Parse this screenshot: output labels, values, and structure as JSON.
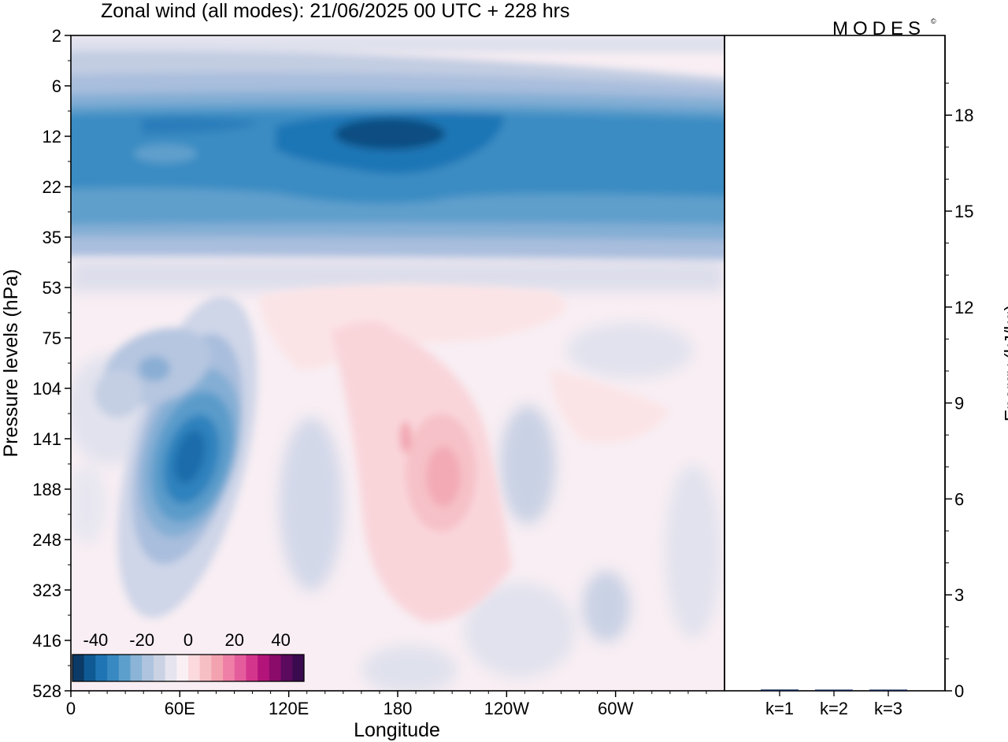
{
  "chart_data": [
    {
      "type": "heatmap",
      "title": "Zonal wind (all modes):  21/06/2025  00 UTC  + 228 hrs",
      "xlabel": "Longitude",
      "ylabel": "Pressure levels (hPa)",
      "x_ticks": [
        "0",
        "60E",
        "120E",
        "180",
        "120W",
        "60W"
      ],
      "x_tick_degrees": [
        0,
        60,
        120,
        180,
        240,
        300
      ],
      "xlim": [
        0,
        360
      ],
      "y_ticks": [
        "2",
        "6",
        "12",
        "22",
        "35",
        "53",
        "75",
        "104",
        "141",
        "188",
        "248",
        "323",
        "416",
        "528"
      ],
      "y_scale": "level index (top = 2 hPa, bottom = 528 hPa)",
      "colorbar": {
        "labels": [
          "-40",
          "-20",
          "0",
          "20",
          "40"
        ],
        "label_values": [
          -40,
          -20,
          0,
          20,
          40
        ],
        "range": [
          -50,
          50
        ],
        "step": 5,
        "colors": [
          "#0b3a66",
          "#0f5a94",
          "#1f74b4",
          "#3889c1",
          "#5d9fcc",
          "#8bb4d6",
          "#aec4df",
          "#cad2e4",
          "#e6e4ee",
          "#faf0f4",
          "#fbd9dc",
          "#f6bfc4",
          "#f3a2b0",
          "#ef7fa6",
          "#e55c9c",
          "#d4358c",
          "#b31479",
          "#8a0b6a",
          "#5c0a5e",
          "#3a0a4e"
        ]
      },
      "features": [
        {
          "name": "stratospheric easterly band",
          "pressure_range_hPa": [
            6,
            35
          ],
          "longitude_range": [
            0,
            360
          ],
          "value_range": [
            -35,
            -15
          ]
        },
        {
          "name": "easterly core",
          "pressure_range_hPa": [
            10,
            16
          ],
          "longitude_range": [
            160,
            220
          ],
          "value": -40
        },
        {
          "name": "upper-tropospheric easterly jet",
          "pressure_range_hPa": [
            104,
            248
          ],
          "longitude_range": [
            40,
            90
          ],
          "value": -35
        },
        {
          "name": "westerly region",
          "pressure_range_hPa": [
            75,
            416
          ],
          "longitude_range": [
            140,
            230
          ],
          "value_range": [
            5,
            15
          ]
        }
      ],
      "grid": false,
      "legend": "bottom-left"
    },
    {
      "type": "bar",
      "ylabel": "Energy (kJ/kg)",
      "categories": [
        "k=1",
        "k=2",
        "k=3"
      ],
      "values": [
        0.04,
        0.02,
        0.01
      ],
      "ylim": [
        0,
        20
      ],
      "y_ticks": [
        "0",
        "3",
        "6",
        "9",
        "12",
        "15",
        "18"
      ],
      "y_tick_values": [
        0,
        3,
        6,
        9,
        12,
        15,
        18
      ],
      "bar_color": "#0b1f4f"
    }
  ],
  "branding": {
    "logo_text": "MODES",
    "logo_mark": "©",
    "logo_color": "#555555"
  }
}
